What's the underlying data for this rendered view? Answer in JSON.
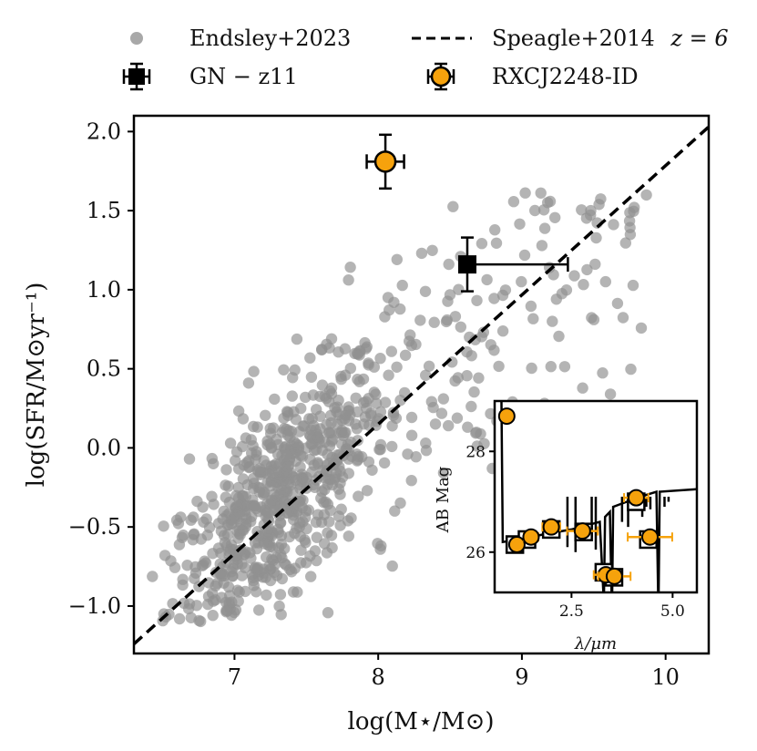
{
  "chart_data": {
    "type": "scatter",
    "xlabel": "log(M⋆/M⊙)",
    "ylabel": "log(SFR/M⊙yr⁻¹)",
    "xlim": [
      6.3,
      10.3
    ],
    "ylim": [
      -1.3,
      2.1
    ],
    "xticks": [
      {
        "v": 7,
        "label": "7"
      },
      {
        "v": 8,
        "label": "8"
      },
      {
        "v": 9,
        "label": "9"
      },
      {
        "v": 10,
        "label": "10"
      }
    ],
    "yticks": [
      {
        "v": -1.0,
        "label": "−1.0"
      },
      {
        "v": -0.5,
        "label": "−0.5"
      },
      {
        "v": 0.0,
        "label": "0.0"
      },
      {
        "v": 0.5,
        "label": "0.5"
      },
      {
        "v": 1.0,
        "label": "1.0"
      },
      {
        "v": 1.5,
        "label": "1.5"
      },
      {
        "v": 2.0,
        "label": "2.0"
      }
    ],
    "legend": {
      "placement": "top",
      "endsley": "Endsley+2023",
      "speagle": "Speagle+2014",
      "speagle_z": "z = 6",
      "gnz11": "GN − z11",
      "rxcj": "RXCJ2248-ID"
    },
    "series": [
      {
        "name": "Endsley+2023",
        "kind": "scatter",
        "color": "#909090",
        "approx_count": 900,
        "cloud_center": [
          7.3,
          -0.35
        ],
        "note": "dense cloud of gray points, rising trend"
      },
      {
        "name": "Speagle+2014 z = 6",
        "kind": "line",
        "style": "dashed",
        "color": "#000000",
        "x": [
          6.3,
          10.3
        ],
        "y": [
          -1.24,
          2.03
        ]
      },
      {
        "name": "GN − z11",
        "kind": "errorbar",
        "marker": "square",
        "color": "#000000",
        "x": 8.62,
        "y": 1.16,
        "xerr_minus": 0.0,
        "xerr_plus": 0.7,
        "yerr": 0.17
      },
      {
        "name": "RXCJ2248-ID",
        "kind": "errorbar",
        "marker": "circle",
        "color": "#f6a20c",
        "x": 8.05,
        "y": 1.81,
        "xerr": 0.13,
        "yerr": 0.17
      }
    ],
    "inset": {
      "type": "sed",
      "xlabel": "λ/μm",
      "ylabel": "AB Mag",
      "xlim": [
        0.6,
        5.6
      ],
      "ylim": [
        29.0,
        25.2
      ],
      "xticks": [
        {
          "v": 2.5,
          "label": "2.5"
        },
        {
          "v": 5.0,
          "label": "5.0"
        }
      ],
      "yticks": [
        {
          "v": 26,
          "label": "26"
        },
        {
          "v": 28,
          "label": "28"
        }
      ],
      "model_mags": [
        {
          "x": 1.1,
          "y": 26.15
        },
        {
          "x": 1.4,
          "y": 26.25
        },
        {
          "x": 2.0,
          "y": 26.45
        },
        {
          "x": 2.8,
          "y": 26.4
        },
        {
          "x": 3.3,
          "y": 25.6
        },
        {
          "x": 3.55,
          "y": 25.5
        },
        {
          "x": 4.1,
          "y": 27.0
        },
        {
          "x": 4.4,
          "y": 26.25
        }
      ],
      "observed": [
        {
          "x": 0.9,
          "y": 28.7,
          "xerr": 0.0
        },
        {
          "x": 1.15,
          "y": 26.15,
          "xerr": 0.12
        },
        {
          "x": 1.5,
          "y": 26.3,
          "xerr": 0.18
        },
        {
          "x": 2.0,
          "y": 26.5,
          "xerr": 0.22
        },
        {
          "x": 2.77,
          "y": 26.42,
          "xerr": 0.38
        },
        {
          "x": 3.35,
          "y": 25.55,
          "xerr": 0.3
        },
        {
          "x": 3.56,
          "y": 25.52,
          "xerr": 0.4
        },
        {
          "x": 4.1,
          "y": 27.08,
          "xerr": 0.3
        },
        {
          "x": 4.44,
          "y": 26.3,
          "xerr": 0.55
        }
      ]
    }
  }
}
